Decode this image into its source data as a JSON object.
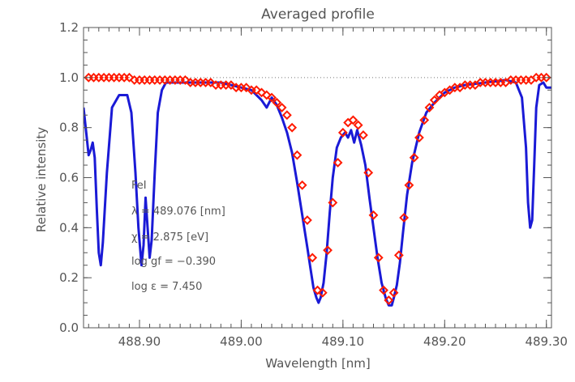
{
  "chart_data": {
    "type": "line",
    "title": "Averaged profile",
    "xlabel": "Wavelength [nm]",
    "ylabel": "Relative intensity",
    "xlim": [
      488.845,
      489.305
    ],
    "ylim": [
      0.0,
      1.2
    ],
    "x_ticks": [
      488.9,
      489.0,
      489.1,
      489.2,
      489.3
    ],
    "x_tick_labels": [
      "488.90",
      "489.00",
      "489.10",
      "489.20",
      "489.30"
    ],
    "y_ticks": [
      0.0,
      0.2,
      0.4,
      0.6,
      0.8,
      1.0,
      1.2
    ],
    "y_tick_labels": [
      "0.0",
      "0.2",
      "0.4",
      "0.6",
      "0.8",
      "1.0",
      "1.2"
    ],
    "reference_line": 1.0,
    "annotations": [
      "FeI",
      "λ  =  489.076 [nm]",
      "χ  =    2.875 [eV]",
      "log gf = −0.390",
      "log ε =   7.450"
    ],
    "series": [
      {
        "style": "line",
        "color": "#1a1ad6",
        "x": [
          488.845,
          488.85,
          488.852,
          488.854,
          488.856,
          488.858,
          488.86,
          488.862,
          488.864,
          488.868,
          488.873,
          488.88,
          488.888,
          488.892,
          488.896,
          488.899,
          488.902,
          488.904,
          488.906,
          488.908,
          488.91,
          488.912,
          488.915,
          488.918,
          488.922,
          488.926,
          488.93,
          488.94,
          488.96,
          488.98,
          489.0,
          489.01,
          489.02,
          489.025,
          489.03,
          489.035,
          489.04,
          489.045,
          489.05,
          489.055,
          489.06,
          489.065,
          489.068,
          489.071,
          489.074,
          489.076,
          489.078,
          489.081,
          489.084,
          489.087,
          489.09,
          489.094,
          489.098,
          489.102,
          489.105,
          489.108,
          489.111,
          489.114,
          489.118,
          489.122,
          489.126,
          489.13,
          489.134,
          489.138,
          489.142,
          489.145,
          489.148,
          489.15,
          489.153,
          489.156,
          489.159,
          489.163,
          489.168,
          489.175,
          489.182,
          489.19,
          489.2,
          489.21,
          489.22,
          489.24,
          489.26,
          489.27,
          489.276,
          489.28,
          489.282,
          489.284,
          489.286,
          489.288,
          489.29,
          489.293,
          489.297,
          489.3,
          489.305
        ],
        "y": [
          0.88,
          0.69,
          0.71,
          0.74,
          0.68,
          0.48,
          0.3,
          0.25,
          0.34,
          0.62,
          0.88,
          0.93,
          0.93,
          0.86,
          0.62,
          0.4,
          0.25,
          0.33,
          0.52,
          0.4,
          0.28,
          0.35,
          0.62,
          0.86,
          0.95,
          0.98,
          0.98,
          0.98,
          0.98,
          0.98,
          0.96,
          0.95,
          0.91,
          0.88,
          0.92,
          0.89,
          0.84,
          0.78,
          0.7,
          0.58,
          0.45,
          0.32,
          0.24,
          0.16,
          0.12,
          0.1,
          0.12,
          0.18,
          0.3,
          0.46,
          0.6,
          0.72,
          0.76,
          0.78,
          0.76,
          0.79,
          0.74,
          0.79,
          0.73,
          0.65,
          0.52,
          0.4,
          0.28,
          0.18,
          0.12,
          0.09,
          0.09,
          0.12,
          0.17,
          0.26,
          0.38,
          0.53,
          0.66,
          0.78,
          0.86,
          0.9,
          0.94,
          0.96,
          0.97,
          0.98,
          0.99,
          0.98,
          0.92,
          0.72,
          0.5,
          0.4,
          0.43,
          0.65,
          0.88,
          0.97,
          0.98,
          0.96,
          0.96
        ]
      },
      {
        "style": "scatter",
        "marker": "diamond",
        "color": "#ff1a00",
        "x": [
          488.85,
          488.855,
          488.86,
          488.865,
          488.87,
          488.875,
          488.88,
          488.885,
          488.89,
          488.895,
          488.9,
          488.905,
          488.91,
          488.915,
          488.92,
          488.925,
          488.93,
          488.935,
          488.94,
          488.945,
          488.95,
          488.955,
          488.96,
          488.965,
          488.97,
          488.975,
          488.98,
          488.985,
          488.99,
          488.995,
          489.0,
          489.005,
          489.01,
          489.015,
          489.02,
          489.025,
          489.03,
          489.035,
          489.04,
          489.045,
          489.05,
          489.055,
          489.06,
          489.065,
          489.07,
          489.075,
          489.08,
          489.085,
          489.09,
          489.095,
          489.1,
          489.105,
          489.11,
          489.115,
          489.12,
          489.125,
          489.13,
          489.135,
          489.14,
          489.145,
          489.15,
          489.155,
          489.16,
          489.165,
          489.17,
          489.175,
          489.18,
          489.185,
          489.19,
          489.195,
          489.2,
          489.205,
          489.21,
          489.215,
          489.22,
          489.225,
          489.23,
          489.235,
          489.24,
          489.245,
          489.25,
          489.255,
          489.26,
          489.265,
          489.27,
          489.275,
          489.28,
          489.285,
          489.29,
          489.295,
          489.3
        ],
        "y": [
          1.0,
          1.0,
          1.0,
          1.0,
          1.0,
          1.0,
          1.0,
          1.0,
          1.0,
          0.99,
          0.99,
          0.99,
          0.99,
          0.99,
          0.99,
          0.99,
          0.99,
          0.99,
          0.99,
          0.99,
          0.98,
          0.98,
          0.98,
          0.98,
          0.98,
          0.97,
          0.97,
          0.97,
          0.97,
          0.96,
          0.96,
          0.96,
          0.95,
          0.95,
          0.94,
          0.93,
          0.92,
          0.9,
          0.88,
          0.85,
          0.8,
          0.69,
          0.57,
          0.43,
          0.28,
          0.15,
          0.14,
          0.31,
          0.5,
          0.66,
          0.78,
          0.82,
          0.83,
          0.81,
          0.77,
          0.62,
          0.45,
          0.28,
          0.15,
          0.11,
          0.14,
          0.29,
          0.44,
          0.57,
          0.68,
          0.76,
          0.83,
          0.88,
          0.91,
          0.93,
          0.94,
          0.95,
          0.96,
          0.96,
          0.97,
          0.97,
          0.97,
          0.98,
          0.98,
          0.98,
          0.98,
          0.98,
          0.98,
          0.99,
          0.99,
          0.99,
          0.99,
          0.99,
          1.0,
          1.0,
          1.0
        ]
      }
    ]
  }
}
